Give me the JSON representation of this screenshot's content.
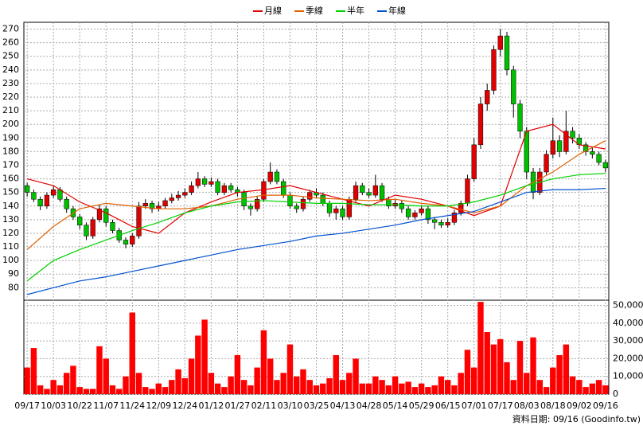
{
  "chart_data": {
    "type": "candlestick",
    "up_color": "#e00000",
    "down_color": "#00c000",
    "grid": true,
    "legend": "top",
    "footer": "資料日期: 09/16  (Goodinfo.tw)",
    "categories": [
      "09/17",
      null,
      null,
      null,
      "10/03",
      null,
      null,
      null,
      "10/22",
      null,
      null,
      null,
      "11/07",
      null,
      null,
      null,
      "11/24",
      null,
      null,
      null,
      "12/09",
      null,
      null,
      null,
      "12/24",
      null,
      null,
      null,
      "01/12",
      null,
      null,
      null,
      "01/27",
      null,
      null,
      null,
      "02/11",
      null,
      null,
      null,
      "03/10",
      null,
      null,
      null,
      "03/25",
      null,
      null,
      null,
      "04/13",
      null,
      null,
      null,
      "04/28",
      null,
      null,
      null,
      "05/14",
      null,
      null,
      null,
      "05/29",
      null,
      null,
      null,
      "06/15",
      null,
      null,
      null,
      "07/01",
      null,
      null,
      null,
      "07/17",
      null,
      null,
      null,
      "08/03",
      null,
      null,
      null,
      "08/18",
      null,
      null,
      null,
      "09/02",
      null,
      null,
      null,
      "09/16"
    ],
    "open": [
      155,
      150,
      145,
      140,
      148,
      152,
      145,
      138,
      132,
      126,
      118,
      130,
      138,
      128,
      122,
      115,
      112,
      118,
      140,
      142,
      138,
      140,
      144,
      146,
      148,
      150,
      155,
      160,
      156,
      158,
      150,
      155,
      152,
      150,
      140,
      138,
      145,
      158,
      165,
      158,
      148,
      140,
      138,
      145,
      150,
      148,
      142,
      135,
      138,
      132,
      145,
      155,
      150,
      148,
      155,
      145,
      140,
      142,
      138,
      132,
      135,
      138,
      130,
      128,
      126,
      128,
      135,
      142,
      160,
      185,
      215,
      225,
      255,
      265,
      240,
      215,
      195,
      165,
      150,
      165,
      178,
      188,
      180,
      195,
      190,
      185,
      180,
      178,
      172
    ],
    "high": [
      157,
      152,
      147,
      150,
      155,
      154,
      147,
      140,
      134,
      128,
      132,
      141,
      140,
      130,
      124,
      117,
      120,
      143,
      145,
      144,
      143,
      146,
      149,
      151,
      153,
      158,
      165,
      162,
      161,
      160,
      157,
      157,
      154,
      152,
      142,
      147,
      160,
      172,
      167,
      160,
      150,
      142,
      147,
      152,
      153,
      150,
      144,
      140,
      140,
      147,
      158,
      157,
      153,
      163,
      157,
      147,
      145,
      144,
      140,
      137,
      140,
      140,
      132,
      130,
      131,
      137,
      144,
      163,
      190,
      220,
      230,
      258,
      270,
      268,
      243,
      218,
      198,
      168,
      168,
      181,
      205,
      192,
      210,
      198,
      193,
      187,
      183,
      180,
      174
    ],
    "low": [
      147,
      143,
      137,
      138,
      146,
      143,
      135,
      130,
      123,
      115,
      116,
      128,
      125,
      120,
      113,
      109,
      110,
      116,
      138,
      135,
      136,
      138,
      142,
      144,
      146,
      148,
      153,
      154,
      154,
      148,
      148,
      150,
      147,
      137,
      133,
      136,
      143,
      156,
      156,
      146,
      138,
      135,
      136,
      143,
      146,
      140,
      132,
      130,
      130,
      130,
      143,
      148,
      146,
      146,
      143,
      138,
      138,
      135,
      130,
      130,
      133,
      127,
      123,
      124,
      124,
      126,
      133,
      140,
      158,
      182,
      210,
      222,
      250,
      236,
      205,
      190,
      160,
      145,
      148,
      163,
      175,
      176,
      178,
      186,
      182,
      177,
      175,
      170,
      165
    ],
    "close": [
      150,
      145,
      140,
      148,
      152,
      145,
      138,
      132,
      126,
      118,
      130,
      138,
      128,
      122,
      115,
      112,
      118,
      140,
      142,
      138,
      140,
      144,
      146,
      148,
      150,
      155,
      160,
      156,
      158,
      150,
      155,
      152,
      150,
      140,
      138,
      145,
      158,
      165,
      158,
      148,
      140,
      138,
      145,
      150,
      148,
      142,
      135,
      138,
      132,
      145,
      155,
      150,
      148,
      155,
      145,
      140,
      142,
      138,
      132,
      135,
      138,
      130,
      128,
      126,
      128,
      135,
      142,
      160,
      185,
      215,
      225,
      255,
      265,
      240,
      215,
      195,
      165,
      150,
      165,
      178,
      188,
      180,
      195,
      190,
      185,
      180,
      178,
      172,
      168
    ],
    "ylim": [
      72,
      275
    ],
    "yticks": [
      80,
      90,
      100,
      110,
      120,
      130,
      140,
      150,
      160,
      170,
      180,
      190,
      200,
      210,
      220,
      230,
      240,
      250,
      260,
      270
    ],
    "series": [
      {
        "name": "月線",
        "color": "#e00000",
        "x": [
          0,
          4,
          8,
          12,
          16,
          20,
          24,
          28,
          32,
          36,
          40,
          44,
          48,
          52,
          56,
          60,
          64,
          68,
          72,
          76,
          80,
          84,
          88
        ],
        "values": [
          160,
          155,
          143,
          135,
          125,
          120,
          135,
          143,
          150,
          152,
          155,
          150,
          145,
          140,
          148,
          145,
          140,
          133,
          140,
          195,
          200,
          185,
          182
        ]
      },
      {
        "name": "季線",
        "color": "#e06000",
        "x": [
          0,
          4,
          8,
          12,
          16,
          20,
          24,
          28,
          32,
          36,
          40,
          44,
          48,
          52,
          56,
          60,
          64,
          68,
          72,
          76,
          80,
          84,
          88
        ],
        "values": [
          108,
          125,
          138,
          142,
          140,
          138,
          138,
          140,
          145,
          148,
          148,
          146,
          145,
          144,
          145,
          142,
          140,
          135,
          140,
          155,
          165,
          178,
          188
        ]
      },
      {
        "name": "半年",
        "color": "#00d000",
        "x": [
          0,
          4,
          8,
          12,
          16,
          20,
          24,
          28,
          32,
          36,
          40,
          44,
          48,
          52,
          56,
          60,
          64,
          68,
          72,
          76,
          80,
          84,
          88
        ],
        "values": [
          85,
          100,
          108,
          115,
          122,
          128,
          135,
          140,
          143,
          144,
          143,
          142,
          142,
          141,
          141,
          140,
          140,
          143,
          148,
          155,
          160,
          163,
          164
        ]
      },
      {
        "name": "年線",
        "color": "#0050d0",
        "x": [
          0,
          4,
          8,
          12,
          16,
          20,
          24,
          28,
          32,
          36,
          40,
          44,
          48,
          52,
          56,
          60,
          64,
          68,
          72,
          76,
          80,
          84,
          88
        ],
        "values": [
          75,
          80,
          85,
          88,
          92,
          96,
          100,
          104,
          108,
          111,
          114,
          118,
          120,
          123,
          126,
          130,
          133,
          136,
          143,
          150,
          152,
          152,
          153
        ]
      }
    ],
    "volume": {
      "color": "#ff0000",
      "values": [
        15000,
        26000,
        5000,
        3000,
        8000,
        5000,
        12000,
        16000,
        4000,
        3000,
        3000,
        27000,
        20000,
        5000,
        3000,
        10000,
        46000,
        12000,
        4000,
        3000,
        6000,
        4000,
        8000,
        14000,
        9000,
        20000,
        33000,
        42000,
        12000,
        6000,
        4000,
        10000,
        22000,
        8000,
        5000,
        15000,
        36000,
        20000,
        8000,
        12000,
        28000,
        10000,
        14000,
        8000,
        5000,
        6000,
        9000,
        22000,
        8000,
        12000,
        20000,
        6000,
        6000,
        10000,
        8000,
        5000,
        10000,
        6000,
        7000,
        4000,
        6000,
        4000,
        5000,
        10000,
        8000,
        5000,
        12000,
        25000,
        15000,
        52000,
        35000,
        28000,
        31000,
        18000,
        8000,
        30000,
        12000,
        32000,
        8000,
        4000,
        15000,
        22000,
        28000,
        10000,
        8000,
        4000,
        6000,
        8000,
        5000
      ],
      "ylim": [
        0,
        52500
      ],
      "yticks": [
        0,
        {
          "value": 10000,
          "label": "10,000"
        },
        {
          "value": 20000,
          "label": "20,000"
        },
        {
          "value": 30000,
          "label": "30,000"
        },
        {
          "value": 40000,
          "label": "40,000"
        },
        {
          "value": 50000,
          "label": "50,000"
        }
      ]
    }
  }
}
